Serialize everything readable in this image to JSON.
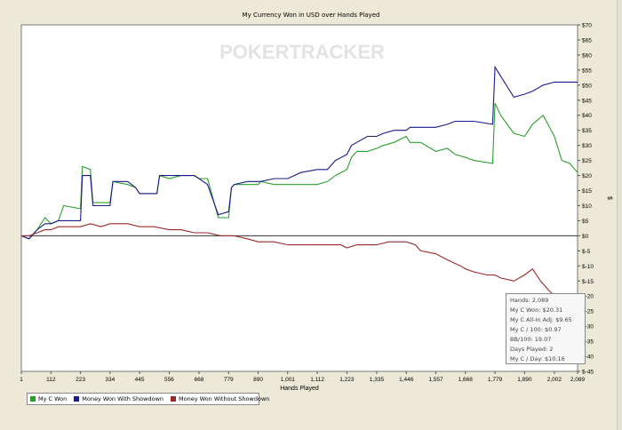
{
  "chart_data": {
    "type": "line",
    "title": "My Currency Won in USD over Hands Played",
    "xlabel": "Hands Played",
    "ylabel": "$",
    "xlim": [
      1,
      2089
    ],
    "ylim": [
      -45,
      70
    ],
    "x_ticks": [
      "1",
      "112",
      "223",
      "334",
      "445",
      "556",
      "668",
      "779",
      "890",
      "1,001",
      "1,112",
      "1,223",
      "1,335",
      "1,446",
      "1,557",
      "1,668",
      "1,779",
      "1,890",
      "2,002",
      "2,089"
    ],
    "x_tick_values": [
      1,
      112,
      223,
      334,
      445,
      556,
      668,
      779,
      890,
      1001,
      1112,
      1223,
      1335,
      1446,
      1557,
      1668,
      1779,
      1890,
      2002,
      2089
    ],
    "y_ticks": [
      "$70",
      "$65",
      "$60",
      "$55",
      "$50",
      "$45",
      "$40",
      "$35",
      "$30",
      "$25",
      "$20",
      "$15",
      "$10",
      "$5",
      "$0",
      "$-5",
      "$-10",
      "$-15",
      "$-20",
      "$-25",
      "$-30",
      "$-35",
      "$-40",
      "$-45"
    ],
    "y_tick_values": [
      70,
      65,
      60,
      55,
      50,
      45,
      40,
      35,
      30,
      25,
      20,
      15,
      10,
      5,
      0,
      -5,
      -10,
      -15,
      -20,
      -25,
      -30,
      -35,
      -40,
      -45
    ],
    "grid": false,
    "watermark": "POKERTRACKER",
    "series": [
      {
        "name": "My C Won",
        "color": "#2aa02a",
        "points": [
          [
            1,
            0
          ],
          [
            30,
            -1
          ],
          [
            60,
            2
          ],
          [
            90,
            6
          ],
          [
            112,
            4
          ],
          [
            140,
            5
          ],
          [
            160,
            10
          ],
          [
            223,
            9
          ],
          [
            230,
            23
          ],
          [
            260,
            22
          ],
          [
            270,
            11
          ],
          [
            334,
            11
          ],
          [
            345,
            18
          ],
          [
            400,
            17
          ],
          [
            430,
            16
          ],
          [
            445,
            14
          ],
          [
            490,
            14
          ],
          [
            510,
            14
          ],
          [
            520,
            20
          ],
          [
            556,
            19
          ],
          [
            600,
            20
          ],
          [
            650,
            20
          ],
          [
            668,
            19
          ],
          [
            700,
            19
          ],
          [
            740,
            6
          ],
          [
            779,
            6
          ],
          [
            790,
            16
          ],
          [
            800,
            17
          ],
          [
            850,
            17
          ],
          [
            890,
            17
          ],
          [
            900,
            18
          ],
          [
            950,
            17
          ],
          [
            1001,
            17
          ],
          [
            1050,
            17
          ],
          [
            1112,
            17
          ],
          [
            1150,
            18
          ],
          [
            1180,
            20
          ],
          [
            1223,
            22
          ],
          [
            1240,
            26
          ],
          [
            1260,
            28
          ],
          [
            1300,
            28
          ],
          [
            1335,
            29
          ],
          [
            1360,
            30
          ],
          [
            1400,
            31
          ],
          [
            1446,
            33
          ],
          [
            1460,
            31
          ],
          [
            1500,
            31
          ],
          [
            1557,
            28
          ],
          [
            1600,
            29
          ],
          [
            1630,
            27
          ],
          [
            1668,
            26
          ],
          [
            1700,
            25
          ],
          [
            1770,
            24
          ],
          [
            1779,
            44
          ],
          [
            1800,
            40
          ],
          [
            1850,
            34
          ],
          [
            1890,
            33
          ],
          [
            1920,
            37
          ],
          [
            1960,
            40
          ],
          [
            2002,
            33
          ],
          [
            2030,
            25
          ],
          [
            2060,
            24
          ],
          [
            2089,
            21
          ]
        ]
      },
      {
        "name": "Money Won With Showdown",
        "color": "#1a1a8a",
        "points": [
          [
            1,
            0
          ],
          [
            30,
            -1
          ],
          [
            60,
            2
          ],
          [
            90,
            4
          ],
          [
            112,
            4
          ],
          [
            140,
            5
          ],
          [
            160,
            5
          ],
          [
            223,
            5
          ],
          [
            230,
            20
          ],
          [
            260,
            20
          ],
          [
            270,
            10
          ],
          [
            334,
            10
          ],
          [
            345,
            18
          ],
          [
            400,
            18
          ],
          [
            430,
            16
          ],
          [
            445,
            14
          ],
          [
            490,
            14
          ],
          [
            510,
            14
          ],
          [
            520,
            20
          ],
          [
            556,
            20
          ],
          [
            600,
            20
          ],
          [
            650,
            20
          ],
          [
            668,
            19
          ],
          [
            700,
            17
          ],
          [
            740,
            7
          ],
          [
            779,
            8
          ],
          [
            790,
            16
          ],
          [
            800,
            17
          ],
          [
            850,
            18
          ],
          [
            890,
            18
          ],
          [
            900,
            18
          ],
          [
            950,
            19
          ],
          [
            1001,
            19
          ],
          [
            1050,
            21
          ],
          [
            1112,
            22
          ],
          [
            1150,
            22
          ],
          [
            1180,
            25
          ],
          [
            1223,
            27
          ],
          [
            1240,
            30
          ],
          [
            1260,
            31
          ],
          [
            1300,
            33
          ],
          [
            1335,
            33
          ],
          [
            1360,
            34
          ],
          [
            1400,
            35
          ],
          [
            1446,
            35
          ],
          [
            1460,
            36
          ],
          [
            1500,
            36
          ],
          [
            1557,
            36
          ],
          [
            1600,
            37
          ],
          [
            1630,
            38
          ],
          [
            1668,
            38
          ],
          [
            1700,
            38
          ],
          [
            1770,
            37
          ],
          [
            1779,
            56
          ],
          [
            1800,
            53
          ],
          [
            1850,
            46
          ],
          [
            1890,
            47
          ],
          [
            1920,
            48
          ],
          [
            1960,
            50
          ],
          [
            2002,
            51
          ],
          [
            2030,
            51
          ],
          [
            2060,
            51
          ],
          [
            2089,
            51
          ]
        ]
      },
      {
        "name": "Money Won Without Showdown",
        "color": "#9a2a2a",
        "points": [
          [
            1,
            0
          ],
          [
            30,
            0
          ],
          [
            60,
            1
          ],
          [
            90,
            2
          ],
          [
            112,
            2
          ],
          [
            140,
            3
          ],
          [
            160,
            3
          ],
          [
            223,
            3
          ],
          [
            260,
            4
          ],
          [
            300,
            3
          ],
          [
            334,
            4
          ],
          [
            360,
            4
          ],
          [
            400,
            4
          ],
          [
            445,
            3
          ],
          [
            500,
            3
          ],
          [
            556,
            2
          ],
          [
            600,
            2
          ],
          [
            650,
            1
          ],
          [
            668,
            1
          ],
          [
            700,
            1
          ],
          [
            750,
            0
          ],
          [
            779,
            0
          ],
          [
            800,
            0
          ],
          [
            850,
            -1
          ],
          [
            890,
            -2
          ],
          [
            950,
            -2
          ],
          [
            1001,
            -3
          ],
          [
            1050,
            -3
          ],
          [
            1112,
            -3
          ],
          [
            1150,
            -3
          ],
          [
            1200,
            -3
          ],
          [
            1223,
            -4
          ],
          [
            1260,
            -3
          ],
          [
            1300,
            -3
          ],
          [
            1335,
            -3
          ],
          [
            1380,
            -2
          ],
          [
            1420,
            -2
          ],
          [
            1446,
            -2
          ],
          [
            1480,
            -3
          ],
          [
            1500,
            -5
          ],
          [
            1557,
            -6
          ],
          [
            1600,
            -8
          ],
          [
            1650,
            -10
          ],
          [
            1668,
            -11
          ],
          [
            1700,
            -12
          ],
          [
            1750,
            -13
          ],
          [
            1779,
            -13
          ],
          [
            1800,
            -14
          ],
          [
            1850,
            -15
          ],
          [
            1890,
            -13
          ],
          [
            1920,
            -11
          ],
          [
            1950,
            -15
          ],
          [
            1980,
            -18
          ],
          [
            2002,
            -20
          ],
          [
            2030,
            -26
          ],
          [
            2060,
            -28
          ],
          [
            2089,
            -30
          ]
        ]
      }
    ]
  },
  "stats": [
    "Hands: 2,089",
    "My C Won: $20.31",
    "My C All-In Adj: $9.65",
    "My C / 100: $0.97",
    "BB/100: 19.07",
    "Days Played: 2",
    "My C / Day: $10.16"
  ]
}
